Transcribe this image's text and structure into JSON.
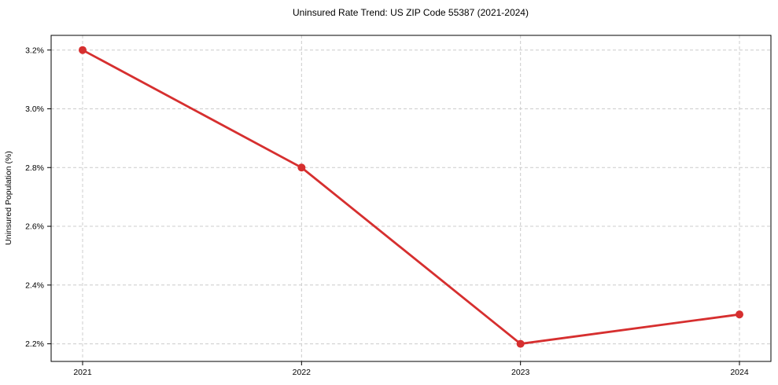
{
  "chart_data": {
    "type": "line",
    "title": "Uninsured Rate Trend: US ZIP Code 55387 (2021-2024)",
    "xlabel": "",
    "ylabel": "Uninsured Population (%)",
    "categories": [
      "2021",
      "2022",
      "2023",
      "2024"
    ],
    "series": [
      {
        "name": "Uninsured Population (%)",
        "values": [
          3.2,
          2.8,
          2.2,
          2.3
        ]
      }
    ],
    "y_ticks": [
      2.2,
      2.4,
      2.6,
      2.8,
      3.0,
      3.2
    ],
    "y_tick_labels": [
      "2.2%",
      "2.4%",
      "2.6%",
      "2.8%",
      "3.0%",
      "3.2%"
    ],
    "ylim": [
      2.14,
      3.25
    ],
    "grid": true,
    "grid_style": "dashed",
    "legend_position": "none",
    "colors": {
      "line": "#d62f2f",
      "marker": "#d62f2f",
      "grid": "#cccccc",
      "axis": "#000000",
      "background": "#ffffff"
    }
  }
}
